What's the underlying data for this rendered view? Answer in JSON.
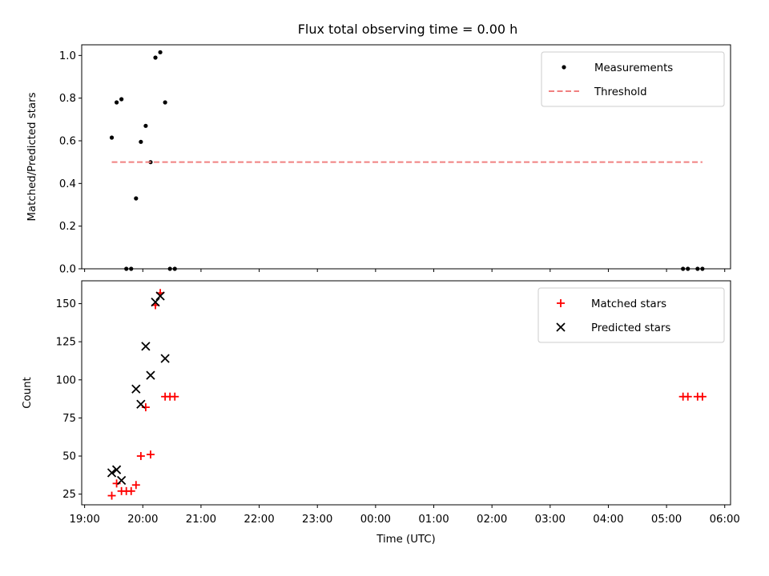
{
  "title": "Flux total observing time = 0.00 h",
  "chart_data": [
    {
      "type": "scatter",
      "ylabel": "Matched/Predicted stars",
      "ylim": [
        0,
        1.05
      ],
      "yticks": [
        "0.0",
        "0.2",
        "0.4",
        "0.6",
        "0.8",
        "1.0"
      ],
      "ytick_values": [
        0,
        0.2,
        0.4,
        0.6,
        0.8,
        1.0
      ],
      "legend": [
        "Measurements",
        "Threshold"
      ],
      "legend_position": "top-right",
      "series": [
        {
          "name": "Measurements",
          "marker": "dot",
          "color": "#000000",
          "points": [
            [
              "19:28",
              0.615
            ],
            [
              "19:33",
              0.78
            ],
            [
              "19:38",
              0.795
            ],
            [
              "19:43",
              0.0
            ],
            [
              "19:48",
              0.0
            ],
            [
              "19:53",
              0.33
            ],
            [
              "19:58",
              0.595
            ],
            [
              "20:03",
              0.67
            ],
            [
              "20:08",
              0.5
            ],
            [
              "20:13",
              0.99
            ],
            [
              "20:18",
              1.015
            ],
            [
              "20:23",
              0.78
            ],
            [
              "20:28",
              0.0
            ],
            [
              "20:33",
              0.0
            ],
            [
              "05:17",
              0.0
            ],
            [
              "05:22",
              0.0
            ],
            [
              "05:32",
              0.0
            ],
            [
              "05:37",
              0.0
            ]
          ]
        },
        {
          "name": "Threshold",
          "marker": "dashed-line",
          "color": "#f08080",
          "points": [
            [
              "19:28",
              0.5
            ],
            [
              "05:37",
              0.5
            ]
          ]
        }
      ]
    },
    {
      "type": "scatter",
      "xlabel": "Time (UTC)",
      "ylabel": "Count",
      "ylim": [
        18,
        165
      ],
      "yticks": [
        "25",
        "50",
        "75",
        "100",
        "125",
        "150"
      ],
      "ytick_values": [
        25,
        50,
        75,
        100,
        125,
        150
      ],
      "xticks": [
        "19:00",
        "20:00",
        "21:00",
        "22:00",
        "23:00",
        "00:00",
        "01:00",
        "02:00",
        "03:00",
        "04:00",
        "05:00",
        "06:00"
      ],
      "legend": [
        "Matched stars",
        "Predicted stars"
      ],
      "legend_position": "top-right",
      "series": [
        {
          "name": "Matched stars",
          "marker": "plus",
          "color": "#ff0000",
          "points": [
            [
              "19:28",
              24
            ],
            [
              "19:33",
              32
            ],
            [
              "19:38",
              27
            ],
            [
              "19:43",
              27
            ],
            [
              "19:48",
              27
            ],
            [
              "19:53",
              31
            ],
            [
              "19:58",
              50
            ],
            [
              "20:03",
              82
            ],
            [
              "20:08",
              51
            ],
            [
              "20:13",
              149
            ],
            [
              "20:18",
              157
            ],
            [
              "20:23",
              89
            ],
            [
              "20:28",
              89
            ],
            [
              "20:33",
              89
            ],
            [
              "05:17",
              89
            ],
            [
              "05:22",
              89
            ],
            [
              "05:32",
              89
            ],
            [
              "05:37",
              89
            ]
          ]
        },
        {
          "name": "Predicted stars",
          "marker": "x",
          "color": "#000000",
          "points": [
            [
              "19:28",
              39
            ],
            [
              "19:33",
              41
            ],
            [
              "19:38",
              34
            ],
            [
              "19:53",
              94
            ],
            [
              "19:58",
              84
            ],
            [
              "20:03",
              122
            ],
            [
              "20:08",
              103
            ],
            [
              "20:13",
              151
            ],
            [
              "20:18",
              155
            ],
            [
              "20:23",
              114
            ]
          ]
        }
      ]
    }
  ],
  "x_axis": {
    "start": "19:00",
    "end": "06:00",
    "ticks": [
      "19:00",
      "20:00",
      "21:00",
      "22:00",
      "23:00",
      "00:00",
      "01:00",
      "02:00",
      "03:00",
      "04:00",
      "05:00",
      "06:00"
    ],
    "range": [
      "18:57",
      "06:06"
    ]
  }
}
